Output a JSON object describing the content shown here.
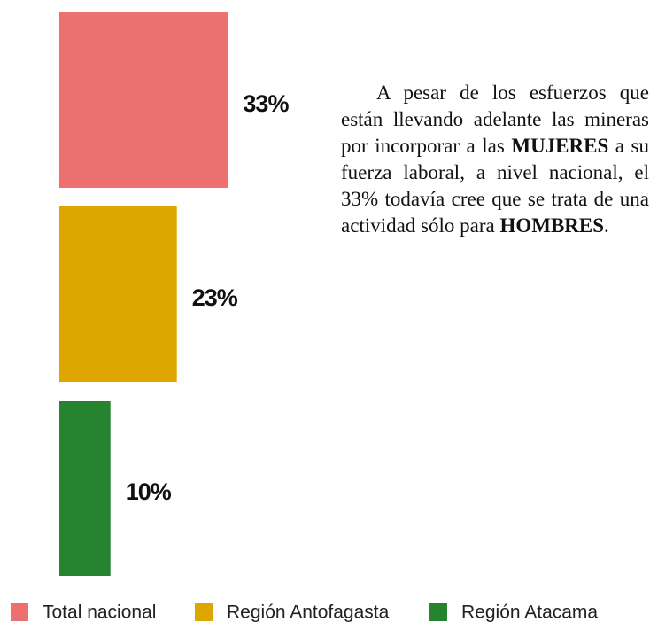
{
  "chart_data": {
    "type": "barh",
    "categories": [
      "Total nacional",
      "Región Antofagasta",
      "Región Atacama"
    ],
    "values": [
      33,
      23,
      10
    ],
    "value_labels": [
      "33%",
      "23%",
      "10%"
    ],
    "colors": [
      "#ec7070",
      "#dea600",
      "#268330"
    ],
    "legend": "bottom",
    "annotation": [
      {
        "text": "A pesar de los esfuerzos que están llevando adelante las mineras por incorporar a las ",
        "bold": false
      },
      {
        "text": "MUJERES",
        "bold": true
      },
      {
        "text": " a su fuerza laboral, a nivel nacional, el 33% todavía cree que se trata de una actividad sólo para ",
        "bold": false
      },
      {
        "text": "HOMBRES",
        "bold": true
      },
      {
        "text": ".",
        "bold": false
      }
    ]
  }
}
